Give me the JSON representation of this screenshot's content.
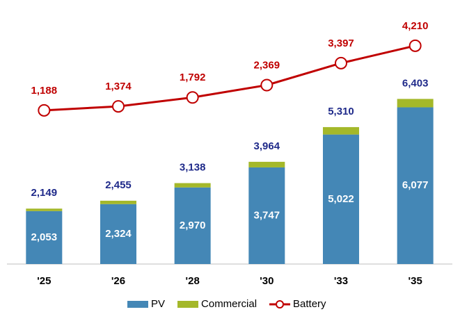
{
  "chart_data": {
    "type": "bar",
    "stacked": true,
    "categories": [
      "'25",
      "'26",
      "'28",
      "'30",
      "'33",
      "'35"
    ],
    "series": [
      {
        "name": "PV",
        "color": "#4487b6",
        "values": [
          2053,
          2324,
          2970,
          3747,
          5022,
          6077
        ]
      },
      {
        "name": "Commercial",
        "color": "#a4b82a",
        "values": [
          96,
          131,
          168,
          217,
          288,
          326
        ]
      },
      {
        "name": "Battery",
        "color": "#c00000",
        "type": "line",
        "axis": "y2",
        "values": [
          1188,
          1374,
          1792,
          2369,
          3397,
          4210
        ]
      }
    ],
    "totals": [
      2149,
      2455,
      3138,
      3964,
      5310,
      6403
    ],
    "ylim": [
      0,
      9700
    ],
    "y2lim": [
      -6000,
      5700
    ],
    "legend": "bottom"
  }
}
